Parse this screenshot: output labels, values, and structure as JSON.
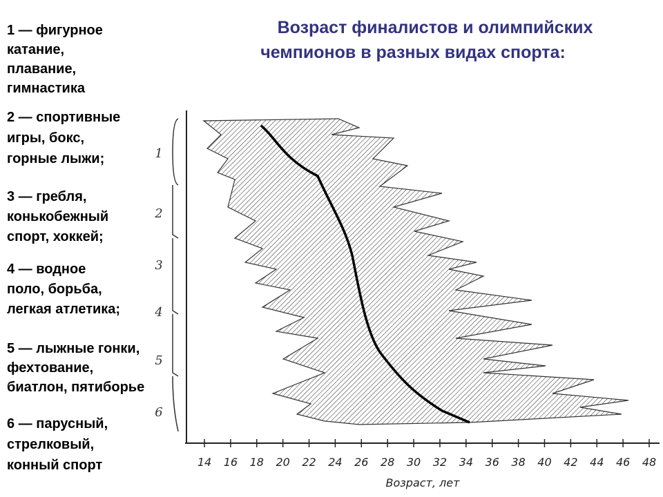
{
  "title": [
    "Возраст финалистов и олимпийских",
    "чемпионов в разных видах спорта:"
  ],
  "groups": [
    [
      "1 — фигурное",
      "катание,",
      "плавание,",
      "гимнастика"
    ],
    [
      "2 — спортивные",
      "игры, бокс,",
      "горные лыжи;"
    ],
    [
      "3 — гребля,",
      "конькобежный",
      "спорт, хоккей;"
    ],
    [
      "4 — водное",
      "поло, борьба,",
      "легкая атлетика;"
    ],
    [
      "5 — лыжные гонки,",
      "фехтование,",
      "биатлон, пятиборье"
    ],
    [
      "6 — парусный,",
      "стрелковый,",
      "конный спорт"
    ]
  ],
  "figure": {
    "group_labels": [
      "1",
      "2",
      "3",
      "4",
      "5",
      "6"
    ],
    "xticks": [
      14,
      16,
      18,
      20,
      22,
      24,
      26,
      28,
      30,
      32,
      34,
      36,
      38,
      40,
      42,
      44,
      46,
      48
    ],
    "xlabel": "Возраст, лет"
  }
}
